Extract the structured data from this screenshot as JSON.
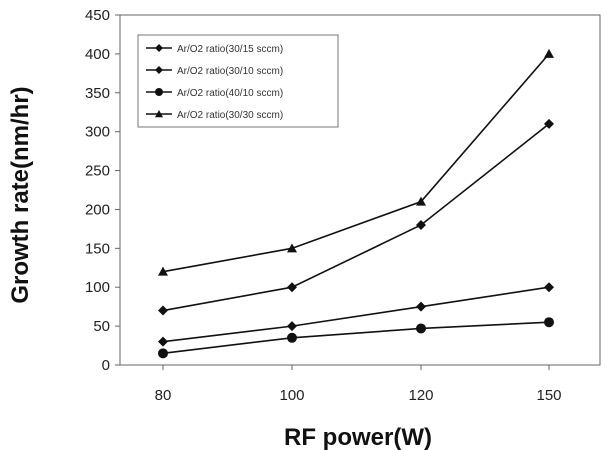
{
  "chart_data": {
    "type": "line",
    "categories": [
      "80",
      "100",
      "120",
      "150"
    ],
    "ylim": [
      0,
      450
    ],
    "yticks": [
      0,
      50,
      100,
      150,
      200,
      250,
      300,
      350,
      400,
      450
    ],
    "xlabel": "RF power(W)",
    "ylabel": "Growth rate(nm/hr)",
    "grid": false,
    "legend": "top-left",
    "series": [
      {
        "name": "Ar/O2 ratio(30/15 sccm)",
        "marker": "diamond",
        "values": [
          30,
          50,
          75,
          100
        ]
      },
      {
        "name": "Ar/O2 ratio(30/10 sccm)",
        "marker": "diamond",
        "values": [
          70,
          100,
          180,
          310
        ]
      },
      {
        "name": "Ar/O2 ratio(40/10 sccm)",
        "marker": "circle",
        "values": [
          15,
          35,
          47,
          55
        ]
      },
      {
        "name": "Ar/O2 ratio(30/30 sccm)",
        "marker": "triangle",
        "values": [
          120,
          150,
          210,
          400
        ]
      }
    ],
    "colors": {
      "line": "#111111",
      "axis": "#666666"
    }
  }
}
